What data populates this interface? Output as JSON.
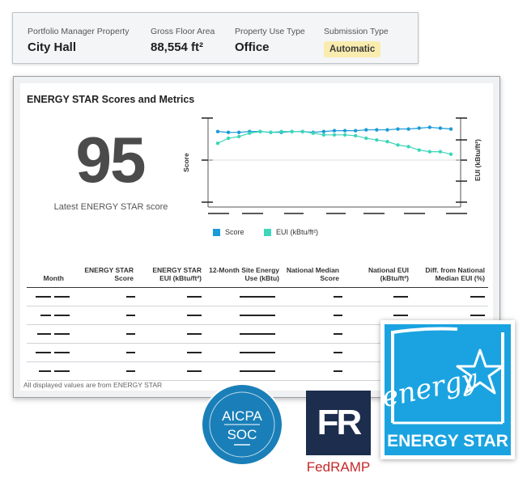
{
  "property": {
    "fields": [
      {
        "label": "Portfolio Manager Property",
        "value": "City Hall"
      },
      {
        "label": "Gross Floor Area",
        "value": "88,554 ft²"
      },
      {
        "label": "Property Use Type",
        "value": "Office"
      }
    ],
    "submission": {
      "label": "Submission Type",
      "value": "Automatic"
    }
  },
  "panel": {
    "title": "ENERGY STAR Scores and Metrics",
    "score": "95",
    "score_caption": "Latest ENERGY STAR score",
    "footnote": "All displayed values are from ENERGY STAR"
  },
  "table": {
    "headers": [
      "Month",
      "ENERGY STAR Score",
      "ENERGY STAR EUI (kBtu/ft²)",
      "12-Month Site Energy Use (kBtu)",
      "National Median Score",
      "National EUI (kBtu/ft²)",
      "Diff. from National Median EUI (%)"
    ],
    "row_count": 5
  },
  "colors": {
    "score": "#1a9ad9",
    "eui": "#3dd6b8",
    "badge": "#f9ecae",
    "energy_star_blue": "#1aa3e0"
  },
  "chart_data": {
    "type": "line",
    "ylabel": "Score",
    "ylabel_right": "EUI (kBtu/ft²)",
    "series": [
      {
        "name": "Score",
        "values": [
          84,
          83,
          83,
          84,
          84,
          83,
          83,
          84,
          84,
          83,
          84,
          85,
          85,
          85,
          86,
          86,
          86,
          87,
          87,
          88,
          89,
          88,
          87
        ]
      },
      {
        "name": "EUI (kBtu/ft²)",
        "values": [
          70,
          76,
          78,
          82,
          84,
          83,
          84,
          84,
          84,
          82,
          80,
          80,
          80,
          79,
          76,
          74,
          72,
          68,
          66,
          62,
          60,
          60,
          57
        ]
      }
    ]
  },
  "logos": {
    "aicpa": {
      "line1": "AICPA",
      "line2": "SOC"
    },
    "fedramp": {
      "mark": "FR",
      "text": "FedRAMP"
    },
    "energy_star": {
      "wordmark": "energy",
      "label": "ENERGY STAR"
    }
  }
}
